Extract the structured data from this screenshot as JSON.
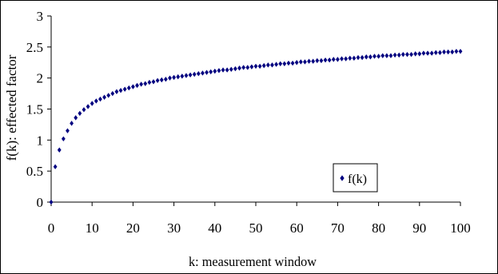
{
  "chart_data": {
    "type": "scatter",
    "title": "",
    "xlabel": "k: measurement window",
    "ylabel": "f(k): effected factor",
    "xlim": [
      0,
      100
    ],
    "ylim": [
      0,
      3
    ],
    "x_ticks": [
      "0",
      "10",
      "20",
      "30",
      "40",
      "50",
      "60",
      "70",
      "80",
      "90",
      "100"
    ],
    "y_ticks": [
      "0",
      "0.5",
      "1",
      "1.5",
      "2",
      "2.5",
      "3"
    ],
    "grid": false,
    "legend_position": "bottom-right",
    "series": [
      {
        "name": "f(k)",
        "color": "#000080",
        "marker": "diamond",
        "x": [
          0,
          1,
          2,
          3,
          4,
          5,
          6,
          7,
          8,
          9,
          10,
          11,
          12,
          13,
          14,
          15,
          16,
          17,
          18,
          19,
          20,
          21,
          22,
          23,
          24,
          25,
          26,
          27,
          28,
          29,
          30,
          31,
          32,
          33,
          34,
          35,
          36,
          37,
          38,
          39,
          40,
          41,
          42,
          43,
          44,
          45,
          46,
          47,
          48,
          49,
          50,
          51,
          52,
          53,
          54,
          55,
          56,
          57,
          58,
          59,
          60,
          61,
          62,
          63,
          64,
          65,
          66,
          67,
          68,
          69,
          70,
          71,
          72,
          73,
          74,
          75,
          76,
          77,
          78,
          79,
          80,
          81,
          82,
          83,
          84,
          85,
          86,
          87,
          88,
          89,
          90,
          91,
          92,
          93,
          94,
          95,
          96,
          97,
          98,
          99,
          100
        ],
        "y": [
          0,
          0.57,
          0.84,
          1.02,
          1.15,
          1.27,
          1.36,
          1.43,
          1.49,
          1.54,
          1.59,
          1.63,
          1.66,
          1.69,
          1.72,
          1.75,
          1.78,
          1.8,
          1.82,
          1.84,
          1.86,
          1.88,
          1.9,
          1.91,
          1.93,
          1.94,
          1.96,
          1.97,
          1.98,
          2.0,
          2.01,
          2.02,
          2.03,
          2.04,
          2.05,
          2.06,
          2.07,
          2.08,
          2.09,
          2.1,
          2.11,
          2.12,
          2.13,
          2.13,
          2.14,
          2.15,
          2.16,
          2.17,
          2.17,
          2.18,
          2.19,
          2.19,
          2.2,
          2.21,
          2.21,
          2.22,
          2.23,
          2.23,
          2.24,
          2.24,
          2.25,
          2.26,
          2.26,
          2.27,
          2.27,
          2.28,
          2.28,
          2.29,
          2.29,
          2.3,
          2.3,
          2.31,
          2.31,
          2.32,
          2.32,
          2.33,
          2.33,
          2.34,
          2.34,
          2.35,
          2.35,
          2.36,
          2.36,
          2.36,
          2.37,
          2.37,
          2.38,
          2.38,
          2.38,
          2.39,
          2.39,
          2.4,
          2.4,
          2.4,
          2.41,
          2.41,
          2.42,
          2.42,
          2.42,
          2.43,
          2.43
        ]
      }
    ]
  }
}
